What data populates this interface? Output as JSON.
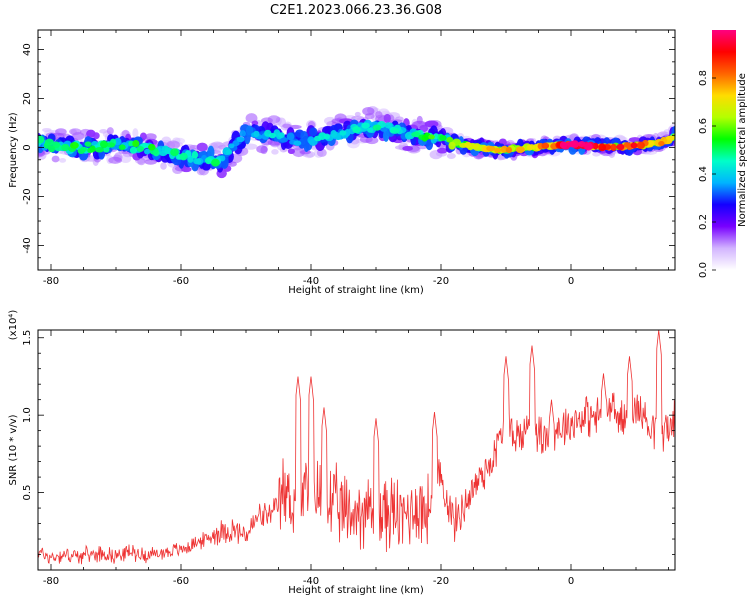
{
  "title": "C2E1.2023.066.23.36.G08",
  "chart_data": [
    {
      "type": "heatmap",
      "title": "C2E1.2023.066.23.36.G08",
      "xlabel": "Height of straight line (km)",
      "ylabel": "Frequency (Hz)",
      "xlim": [
        -82,
        16
      ],
      "ylim": [
        -50,
        48
      ],
      "xticks": [
        -80,
        -60,
        -40,
        -20,
        0
      ],
      "yticks": [
        -40,
        -20,
        0,
        20,
        40
      ],
      "colorbar": {
        "label": "Normalized spectral amplitude",
        "range": [
          0.0,
          1.0
        ],
        "ticks": [
          "0.0",
          "0.2",
          "0.4",
          "0.6",
          "0.8"
        ],
        "colors": [
          "#ffffff",
          "#d2b4ff",
          "#7800ff",
          "#1400ff",
          "#00b4ff",
          "#00ffc8",
          "#00ff00",
          "#b4ff00",
          "#ffdc00",
          "#ff6400",
          "#ff0000",
          "#ff0080"
        ]
      },
      "ridge": {
        "x": [
          -82,
          -78,
          -74,
          -70,
          -66,
          -62,
          -58,
          -54,
          -50,
          -46,
          -42,
          -38,
          -34,
          -30,
          -26,
          -22,
          -20,
          -18,
          -14,
          -10,
          -6,
          -2,
          2,
          6,
          10,
          14,
          16
        ],
        "y": [
          2,
          0,
          0,
          1,
          0,
          -2,
          -4,
          -5,
          6,
          5,
          3,
          4,
          7,
          9,
          6,
          4,
          3,
          2,
          0,
          -1,
          0,
          1,
          1,
          0,
          1,
          2,
          5
        ],
        "amplitude": [
          0.45,
          0.5,
          0.5,
          0.45,
          0.5,
          0.45,
          0.45,
          0.45,
          0.35,
          0.4,
          0.35,
          0.4,
          0.4,
          0.45,
          0.4,
          0.55,
          0.5,
          0.6,
          0.65,
          0.7,
          0.75,
          0.95,
          0.95,
          0.85,
          0.8,
          0.8,
          0.6
        ]
      }
    },
    {
      "type": "line",
      "xlabel": "Height of straight line (km)",
      "ylabel": "SNR (10 * v/v)",
      "y_multiplier": "(x10⁴)",
      "xlim": [
        -82,
        16
      ],
      "ylim": [
        0,
        1.55
      ],
      "xticks": [
        -80,
        -60,
        -40,
        -20,
        0
      ],
      "yticks": [
        "0.5",
        "1.0",
        "1.5"
      ],
      "color": "#ee3333",
      "x": [
        -82,
        -80,
        -78,
        -76,
        -74,
        -72,
        -70,
        -68,
        -66,
        -64,
        -62,
        -60,
        -58,
        -56,
        -54,
        -52,
        -50,
        -48,
        -46,
        -44,
        -42,
        -40,
        -38,
        -36,
        -34,
        -32,
        -30,
        -28,
        -26,
        -24,
        -22,
        -20,
        -18,
        -16,
        -14,
        -12,
        -10,
        -8,
        -6,
        -4,
        -2,
        0,
        2,
        4,
        6,
        8,
        10,
        12,
        14,
        16
      ],
      "y": [
        0.12,
        0.08,
        0.1,
        0.09,
        0.1,
        0.11,
        0.09,
        0.12,
        0.1,
        0.1,
        0.12,
        0.13,
        0.17,
        0.2,
        0.25,
        0.26,
        0.22,
        0.35,
        0.35,
        0.5,
        0.4,
        0.55,
        0.45,
        0.4,
        0.35,
        0.4,
        0.35,
        0.38,
        0.33,
        0.42,
        0.38,
        0.6,
        0.3,
        0.45,
        0.6,
        0.72,
        0.95,
        0.85,
        0.95,
        0.85,
        0.92,
        0.95,
        1.0,
        0.98,
        1.05,
        0.95,
        1.05,
        0.95,
        0.9,
        0.95
      ],
      "peaks": [
        {
          "x": -42,
          "y": 1.25
        },
        {
          "x": -40,
          "y": 1.25
        },
        {
          "x": -38,
          "y": 1.05
        },
        {
          "x": -30,
          "y": 0.98
        },
        {
          "x": -21,
          "y": 1.02
        },
        {
          "x": -10,
          "y": 1.38
        },
        {
          "x": -6,
          "y": 1.45
        },
        {
          "x": -3,
          "y": 1.1
        },
        {
          "x": 5,
          "y": 1.27
        },
        {
          "x": 9,
          "y": 1.38
        },
        {
          "x": 13.5,
          "y": 1.55
        }
      ]
    }
  ]
}
